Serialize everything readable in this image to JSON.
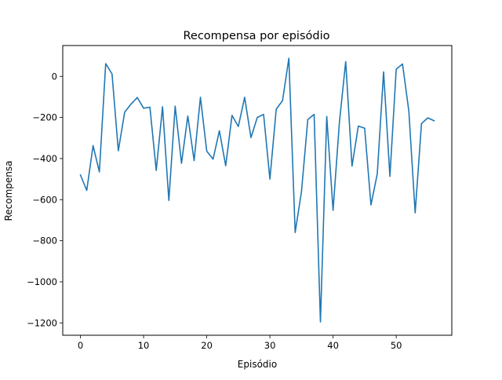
{
  "chart_data": {
    "type": "line",
    "title": "Recompensa por episódio",
    "xlabel": "Episódio",
    "ylabel": "Recompensa",
    "xlim": [
      -2.8,
      58.8
    ],
    "ylim": [
      -1260,
      150
    ],
    "xticks": [
      0,
      10,
      20,
      30,
      40,
      50
    ],
    "yticks": [
      0,
      -200,
      -400,
      -600,
      -800,
      -1000,
      -1200
    ],
    "ytick_labels": [
      "0",
      "−200",
      "−400",
      "−600",
      "−800",
      "−1000",
      "−1200"
    ],
    "grid": false,
    "series": [
      {
        "color": "#1f77b4",
        "x": [
          0,
          1,
          2,
          3,
          4,
          5,
          6,
          7,
          8,
          9,
          10,
          11,
          12,
          13,
          14,
          15,
          16,
          17,
          18,
          19,
          20,
          21,
          22,
          23,
          24,
          25,
          26,
          27,
          28,
          29,
          30,
          31,
          32,
          33,
          34,
          35,
          36,
          37,
          38,
          39,
          40,
          41,
          42,
          43,
          44,
          45,
          46,
          47,
          48,
          49,
          50,
          51,
          52,
          53,
          54,
          55,
          56
        ],
        "y": [
          -480,
          -555,
          -337,
          -465,
          62,
          12,
          -362,
          -175,
          -135,
          -103,
          -155,
          -150,
          -458,
          -148,
          -604,
          -145,
          -423,
          -193,
          -410,
          -102,
          -364,
          -403,
          -265,
          -435,
          -190,
          -244,
          -102,
          -298,
          -200,
          -185,
          -500,
          -160,
          -118,
          88,
          -760,
          -560,
          -210,
          -185,
          -1195,
          -195,
          -652,
          -225,
          72,
          -437,
          -242,
          -252,
          -626,
          -474,
          22,
          -487,
          35,
          60,
          -170,
          -664,
          -230,
          -202,
          -216
        ]
      }
    ]
  }
}
